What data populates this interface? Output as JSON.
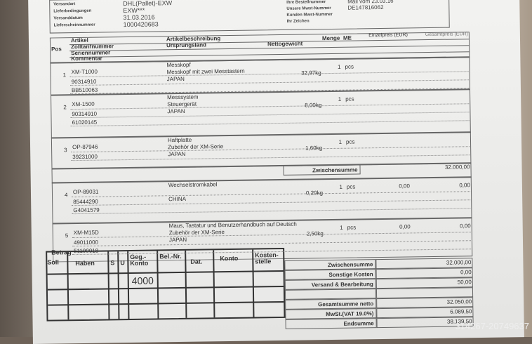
{
  "header": {
    "left": [
      {
        "label": "Versandart",
        "value": "DHL(Pallet)-EXW"
      },
      {
        "label": "Lieferbedingungen",
        "value": "EXW***"
      },
      {
        "label": "Versanddatum",
        "value": "31.03.2016"
      },
      {
        "label": "Lieferscheinnummer",
        "value": "1000420683"
      }
    ],
    "right": [
      {
        "label": "Ihre Bestellnummer",
        "value": "Mail vom 23.03.16"
      },
      {
        "label": "Unsere Mwst-Nummer",
        "value": "DE147816062"
      },
      {
        "label": "Kunden Mwst-Nummer",
        "value": ""
      },
      {
        "label": "Ihr Zeichen",
        "value": ""
      }
    ]
  },
  "table_header": {
    "pos": "Pos",
    "artikel": "Artikel",
    "zolltarif": "Zolltarifnummer",
    "serien": "Seriennummer",
    "kommentar": "Kommentar",
    "beschreibung": "Artikelbeschreibung",
    "ursprung": "Ursprungsland",
    "netto": "Nettogewicht",
    "menge": "Menge",
    "me": "ME",
    "einzel": "Einzelpreis (EUR)",
    "gesamt": "Gesamtpreis (EUR)"
  },
  "items": [
    {
      "pos": "1",
      "artikel": "XM-T1000",
      "zoll": "90314910",
      "serie": "BB510063",
      "desc1": "Messkopf",
      "desc2": "Messkopf mit zwei Messtastern",
      "land": "JAPAN",
      "gewicht": "32,97kg",
      "menge": "1",
      "me": "pcs",
      "einzel": "",
      "gesamt": ""
    },
    {
      "pos": "2",
      "artikel": "XM-1500",
      "zoll": "90314910",
      "serie": "61020145",
      "desc1": "Messsystem",
      "desc2": "Steuergerät",
      "land": "JAPAN",
      "gewicht": "8,00kg",
      "menge": "1",
      "me": "pcs",
      "einzel": "",
      "gesamt": ""
    },
    {
      "pos": "3",
      "artikel": "OP-87946",
      "zoll": "39231000",
      "serie": "",
      "desc1": "Haftplatte",
      "desc2": "Zubehör der XM-Serie",
      "land": "JAPAN",
      "gewicht": "1,60kg",
      "menge": "1",
      "me": "pcs",
      "einzel": "",
      "gesamt": ""
    },
    {
      "pos": "4",
      "artikel": "OP-89031",
      "zoll": "85444290",
      "serie": "G4041579",
      "desc1": "Wechselstromkabel",
      "desc2": "",
      "land": "CHINA",
      "gewicht": "0,20kg",
      "menge": "1",
      "me": "pcs",
      "einzel": "0,00",
      "gesamt": "0,00"
    },
    {
      "pos": "5",
      "artikel": "XM-M15D",
      "zoll": "49011000",
      "serie": "51100018",
      "desc1": "Maus, Tastatur und Benutzerhandbuch auf Deutsch",
      "desc2": "Zubehör der XM-Serie",
      "land": "JAPAN",
      "gewicht": "2,50kg",
      "menge": "1",
      "me": "pcs",
      "einzel": "0,00",
      "gesamt": "0,00"
    }
  ],
  "subtotal": {
    "label": "Zwischensumme",
    "value": "32.000,00"
  },
  "totals": [
    {
      "label": "Zwischensumme",
      "value": "32.000,00"
    },
    {
      "label": "Sonstige Kosten",
      "value": "0,00"
    },
    {
      "label": "Versand & Bearbeitung",
      "value": "50,00"
    },
    {
      "label": "",
      "value": ""
    },
    {
      "label": "Gesamtsumme netto",
      "value": "32.050,00"
    },
    {
      "label": "MwSt.(VAT 19.0%)",
      "value": "6.089,50"
    },
    {
      "label": "Endsumme",
      "value": "38.139,50"
    }
  ],
  "stamp": {
    "betrag": "Betrag",
    "soll": "Soll",
    "haben": "Haben",
    "s": "S",
    "u": "U",
    "gegkonto": "Geg.-Konto",
    "belnr": "Bel.-Nr.",
    "dat": "Dat.",
    "konto": "Konto",
    "kostenstelle": "Kosten-stelle",
    "handwritten": "4000"
  },
  "watermark": "314267-20749637"
}
